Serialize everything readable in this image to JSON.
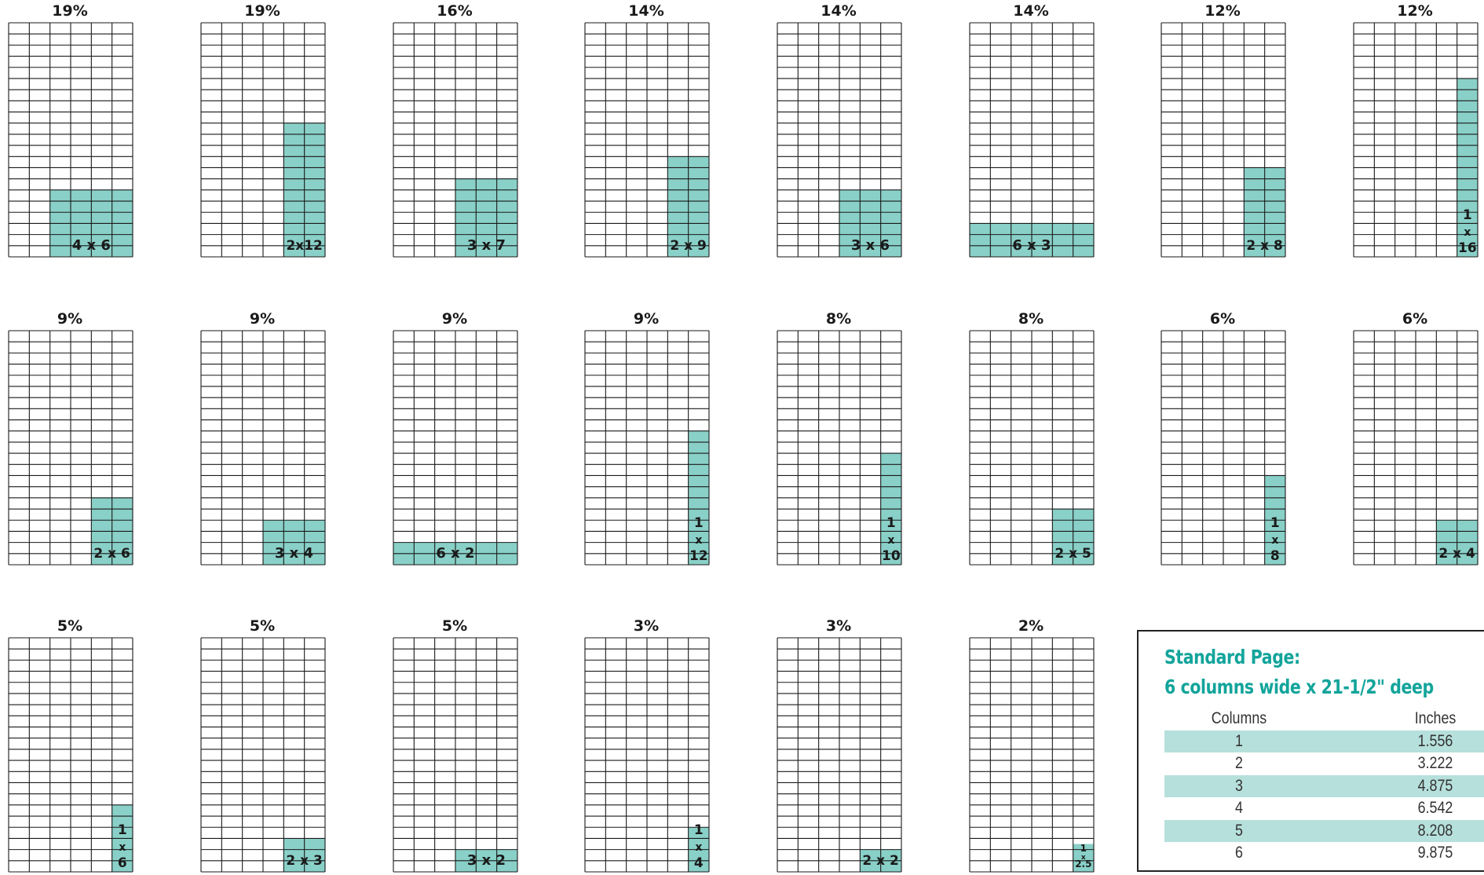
{
  "ad_sizes": [
    {
      "percent": "19%",
      "size": "4 x 6",
      "columns": 4,
      "depth": 6
    },
    {
      "percent": "19%",
      "size": "2x12",
      "columns": 2,
      "depth": 12
    },
    {
      "percent": "16%",
      "size": "3 x 7",
      "columns": 3,
      "depth": 7
    },
    {
      "percent": "14%",
      "size": "2 x 9",
      "columns": 2,
      "depth": 9
    },
    {
      "percent": "14%",
      "size": "3 x 6",
      "columns": 3,
      "depth": 6
    },
    {
      "percent": "14%",
      "size": "6 x 3",
      "columns": 6,
      "depth": 3
    },
    {
      "percent": "12%",
      "size": "2 x 8",
      "columns": 2,
      "depth": 8
    },
    {
      "percent": "12%",
      "size": "1 x 16",
      "label_lines": [
        "1",
        "x",
        "16"
      ],
      "columns": 1,
      "depth": 16
    },
    {
      "percent": "9%",
      "size": "2 x 6",
      "columns": 2,
      "depth": 6
    },
    {
      "percent": "9%",
      "size": "3 x 4",
      "columns": 3,
      "depth": 4
    },
    {
      "percent": "9%",
      "size": "6 x 2",
      "columns": 6,
      "depth": 2
    },
    {
      "percent": "9%",
      "size": "1 x 12",
      "label_lines": [
        "1",
        "x",
        "12"
      ],
      "columns": 1,
      "depth": 12
    },
    {
      "percent": "8%",
      "size": "1 x 10",
      "label_lines": [
        "1",
        "x",
        "10"
      ],
      "columns": 1,
      "depth": 10
    },
    {
      "percent": "8%",
      "size": "2 x 5",
      "columns": 2,
      "depth": 5
    },
    {
      "percent": "6%",
      "size": "1 x 8",
      "label_lines": [
        "1",
        "x",
        "8"
      ],
      "columns": 1,
      "depth": 8
    },
    {
      "percent": "6%",
      "size": "2 x 4",
      "columns": 2,
      "depth": 4
    },
    {
      "percent": "5%",
      "size": "1 x 6",
      "label_lines": [
        "1",
        "x",
        "6"
      ],
      "columns": 1,
      "depth": 6
    },
    {
      "percent": "5%",
      "size": "2 x 3",
      "columns": 2,
      "depth": 3
    },
    {
      "percent": "5%",
      "size": "3 x 2",
      "columns": 3,
      "depth": 2
    },
    {
      "percent": "3%",
      "size": "1 x 4",
      "label_lines": [
        "1",
        "x",
        "4"
      ],
      "columns": 1,
      "depth": 4
    },
    {
      "percent": "3%",
      "size": "2 x 2",
      "columns": 2,
      "depth": 2
    },
    {
      "percent": "2%",
      "size": "1 x 2.5",
      "label_lines": [
        "1",
        "x",
        "2.5"
      ],
      "columns": 1,
      "depth": 2.5
    }
  ],
  "page_grid": {
    "columns": 6,
    "rows": 21
  },
  "colors": {
    "ad_fill": "#89d0c8",
    "grid_line": "#1a1a1a",
    "title_accent": "#12a49b",
    "row_shade": "#b6e0dc"
  },
  "standard_page": {
    "title": "Standard Page:",
    "subtitle": "6 columns wide x 21-1/2\" deep",
    "headers": {
      "columns": "Columns",
      "inches": "Inches"
    },
    "rows": [
      {
        "columns": "1",
        "inches": "1.556"
      },
      {
        "columns": "2",
        "inches": "3.222"
      },
      {
        "columns": "3",
        "inches": "4.875"
      },
      {
        "columns": "4",
        "inches": "6.542"
      },
      {
        "columns": "5",
        "inches": "8.208"
      },
      {
        "columns": "6",
        "inches": "9.875"
      }
    ]
  }
}
